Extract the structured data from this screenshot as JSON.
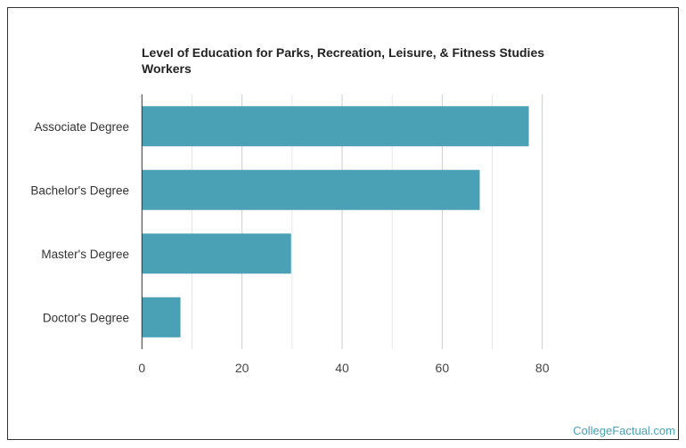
{
  "chart_data": {
    "type": "bar",
    "orientation": "horizontal",
    "title": "Level of Education for Parks, Recreation, Leisure, & Fitness Studies Workers",
    "categories": [
      "Associate Degree",
      "Bachelor's Degree",
      "Master's Degree",
      "Doctor's Degree"
    ],
    "values": [
      77.3,
      67.5,
      29.8,
      7.7
    ],
    "xlim": [
      0,
      80
    ],
    "xticks": [
      "0",
      "20",
      "40",
      "60",
      "80"
    ],
    "grid": true,
    "bar_color": "#4aa0b5"
  },
  "footer": {
    "source": "CollegeFactual.com"
  }
}
